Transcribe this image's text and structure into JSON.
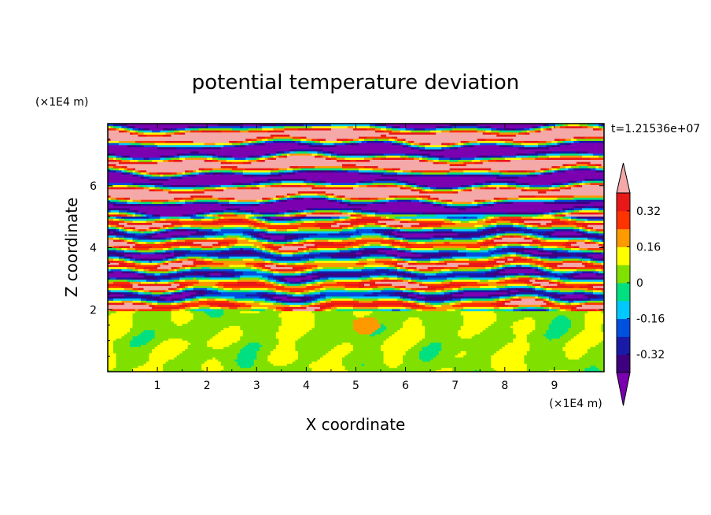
{
  "chart_data": {
    "type": "heatmap",
    "title": "potential temperature deviation",
    "xlabel": "X coordinate",
    "ylabel": "Z coordinate",
    "x_unit": "(×1E4 m)",
    "y_unit": "(×1E4 m)",
    "time_label": "t=1.21536e+07",
    "xlim": [
      0,
      10
    ],
    "ylim": [
      0,
      8
    ],
    "x_ticks": [
      "1",
      "2",
      "3",
      "4",
      "5",
      "6",
      "7",
      "8",
      "9"
    ],
    "y_ticks": [
      "2",
      "4",
      "6"
    ],
    "colorbar": {
      "levels": [
        -0.4,
        -0.32,
        -0.24,
        -0.16,
        -0.08,
        0,
        0.08,
        0.16,
        0.24,
        0.32,
        0.4
      ],
      "tick_labels": [
        "0.32",
        "0.16",
        "0",
        "-0.16",
        "-0.32"
      ],
      "tick_values": [
        0.32,
        0.16,
        0,
        -0.16,
        -0.32
      ],
      "extend": "both",
      "colors": [
        "#7a00b0",
        "#3f007f",
        "#1a1aa8",
        "#0050e0",
        "#00c8ff",
        "#00e080",
        "#80e000",
        "#ffff00",
        "#ff9900",
        "#ff3300",
        "#e81818",
        "#f4a8a8"
      ]
    },
    "regions": [
      {
        "z_range": [
          0,
          1.9
        ],
        "description_values": [
          0,
          0.08
        ],
        "dominant": "0 to 0.08"
      },
      {
        "z_range": [
          1.9,
          5.0
        ],
        "description_values": [
          -0.4,
          0.4
        ],
        "dominant": "mixed"
      },
      {
        "z_range": [
          5.0,
          8.0
        ],
        "description_values": [
          -0.4,
          0.4
        ],
        "dominant": "alternating bands beyond ±0.4"
      }
    ]
  }
}
